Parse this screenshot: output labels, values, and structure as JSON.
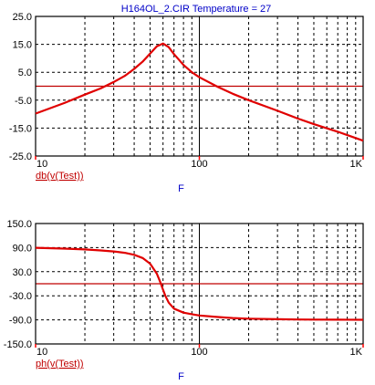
{
  "title": "H164OL_2.CIR Temperature = 27",
  "colors": {
    "curve": "#e00000",
    "zero_line": "#c00000",
    "grid": "#000000",
    "frame": "#000000",
    "ticks": "#ff0000",
    "labels": "#000000",
    "title": "#0000c8",
    "axis_name": "#0000c8",
    "trace_label": "#c00000"
  },
  "chart_data": [
    {
      "type": "line",
      "x_scale": "log",
      "xlim": [
        10,
        1000
      ],
      "ylim": [
        -25,
        25
      ],
      "x_ticks": [
        "10",
        "100",
        "1K"
      ],
      "y_ticks": [
        "25.0",
        "15.0",
        "5.0",
        "-5.0",
        "-15.0",
        "-25.0"
      ],
      "xlabel": "F",
      "ylabel": "",
      "trace_label": "db(v(Test))",
      "grid": true,
      "series": [
        {
          "x": [
            10,
            15,
            20,
            25,
            30,
            35,
            40,
            45,
            50,
            55,
            60,
            65,
            70,
            80,
            90,
            100,
            130,
            160,
            200,
            300,
            400,
            500,
            700,
            1000
          ],
          "y": [
            -9.8,
            -6.0,
            -3.0,
            -0.8,
            1.5,
            3.7,
            6.2,
            8.8,
            11.7,
            14.3,
            15.3,
            14.0,
            11.5,
            7.6,
            5.0,
            3.2,
            -0.3,
            -2.7,
            -5.0,
            -8.8,
            -11.6,
            -13.6,
            -16.3,
            -19.5
          ]
        }
      ]
    },
    {
      "type": "line",
      "x_scale": "log",
      "xlim": [
        10,
        1000
      ],
      "ylim": [
        -150,
        150
      ],
      "x_ticks": [
        "10",
        "100",
        "1K"
      ],
      "y_ticks": [
        "150.0",
        "90.0",
        "30.0",
        "-30.0",
        "-90.0",
        "-150.0"
      ],
      "xlabel": "F",
      "ylabel": "",
      "trace_label": "ph(v(Test))",
      "grid": true,
      "series": [
        {
          "x": [
            10,
            15,
            20,
            25,
            30,
            35,
            40,
            45,
            50,
            55,
            58,
            60,
            62,
            65,
            70,
            80,
            90,
            100,
            130,
            160,
            200,
            300,
            400,
            500,
            700,
            1000
          ],
          "y": [
            89.5,
            87.5,
            85.5,
            83.0,
            80.5,
            77.0,
            72.0,
            64.0,
            50.0,
            25.0,
            2.0,
            -15.0,
            -30.0,
            -47.0,
            -62.0,
            -72.0,
            -76.0,
            -79.0,
            -83.0,
            -85.5,
            -87.0,
            -88.5,
            -89.0,
            -89.3,
            -89.6,
            -89.8
          ]
        }
      ]
    }
  ]
}
